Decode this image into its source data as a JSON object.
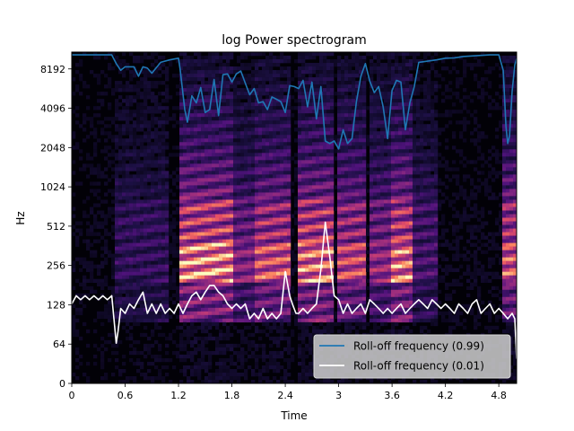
{
  "chart_data": {
    "type": "spectrogram",
    "title": "log Power spectrogram",
    "xlabel": "Time",
    "ylabel": "Hz",
    "xlim": [
      0,
      5.0
    ],
    "y_scale": "symlog (base 2)",
    "ylim": [
      0,
      11025
    ],
    "x_ticks": [
      {
        "value": 0,
        "label": "0"
      },
      {
        "value": 0.6,
        "label": "0.6"
      },
      {
        "value": 1.2,
        "label": "1.2"
      },
      {
        "value": 1.8,
        "label": "1.8"
      },
      {
        "value": 2.4,
        "label": "2.4"
      },
      {
        "value": 3.0,
        "label": "3"
      },
      {
        "value": 3.6,
        "label": "3.6"
      },
      {
        "value": 4.2,
        "label": "4.2"
      },
      {
        "value": 4.8,
        "label": "4.8"
      }
    ],
    "y_ticks": [
      {
        "value": 0,
        "label": "0"
      },
      {
        "value": 64,
        "label": "64"
      },
      {
        "value": 128,
        "label": "128"
      },
      {
        "value": 256,
        "label": "256"
      },
      {
        "value": 512,
        "label": "512"
      },
      {
        "value": 1024,
        "label": "1024"
      },
      {
        "value": 2048,
        "label": "2048"
      },
      {
        "value": 4096,
        "label": "4096"
      },
      {
        "value": 8192,
        "label": "8192"
      }
    ],
    "colormap": "magma",
    "legend_position": "lower-right",
    "series": [
      {
        "name": "Roll-off frequency (0.99)",
        "color": "#1f77b4",
        "x": [
          0,
          0.45,
          0.5,
          0.55,
          0.6,
          0.7,
          0.75,
          0.8,
          0.85,
          0.9,
          1.0,
          1.1,
          1.2,
          1.22,
          1.27,
          1.3,
          1.35,
          1.4,
          1.45,
          1.5,
          1.55,
          1.6,
          1.65,
          1.7,
          1.75,
          1.8,
          1.85,
          1.9,
          1.95,
          2.0,
          2.05,
          2.1,
          2.15,
          2.2,
          2.25,
          2.3,
          2.35,
          2.4,
          2.45,
          2.5,
          2.55,
          2.6,
          2.65,
          2.7,
          2.75,
          2.8,
          2.85,
          2.9,
          2.95,
          3.0,
          3.05,
          3.1,
          3.15,
          3.2,
          3.25,
          3.3,
          3.35,
          3.4,
          3.45,
          3.5,
          3.55,
          3.6,
          3.65,
          3.7,
          3.75,
          3.8,
          3.85,
          3.9,
          4.0,
          4.1,
          4.2,
          4.3,
          4.4,
          4.5,
          4.6,
          4.7,
          4.8,
          4.85,
          4.88,
          4.9,
          4.92,
          4.95,
          4.98,
          5.0
        ],
        "y": [
          10500,
          10500,
          9000,
          8000,
          8500,
          8500,
          7200,
          8500,
          8300,
          7600,
          9200,
          9600,
          9900,
          8000,
          4000,
          3200,
          5100,
          4500,
          5900,
          3800,
          4000,
          6800,
          3600,
          7400,
          7500,
          6500,
          7500,
          7900,
          6400,
          5200,
          5800,
          4500,
          4600,
          4000,
          5000,
          4800,
          4600,
          3800,
          6100,
          6000,
          5800,
          6700,
          4200,
          6500,
          3400,
          6000,
          2300,
          2200,
          2300,
          2000,
          2800,
          2200,
          2400,
          4600,
          7200,
          9000,
          6600,
          5400,
          6000,
          4200,
          2400,
          5600,
          6700,
          6500,
          2800,
          4500,
          6000,
          9200,
          9400,
          9600,
          9900,
          9950,
          10200,
          10300,
          10400,
          10500,
          10500,
          8000,
          3000,
          2200,
          2500,
          5500,
          8800,
          9800
        ]
      },
      {
        "name": "Roll-off frequency (0.01)",
        "color": "#ffffff",
        "x": [
          0,
          0.05,
          0.1,
          0.15,
          0.2,
          0.25,
          0.3,
          0.35,
          0.4,
          0.45,
          0.5,
          0.52,
          0.55,
          0.6,
          0.65,
          0.7,
          0.75,
          0.8,
          0.85,
          0.9,
          0.95,
          1.0,
          1.05,
          1.1,
          1.15,
          1.2,
          1.25,
          1.3,
          1.35,
          1.4,
          1.45,
          1.5,
          1.55,
          1.6,
          1.65,
          1.7,
          1.75,
          1.8,
          1.85,
          1.9,
          1.95,
          2.0,
          2.05,
          2.1,
          2.15,
          2.2,
          2.25,
          2.3,
          2.35,
          2.4,
          2.45,
          2.48,
          2.52,
          2.55,
          2.6,
          2.65,
          2.7,
          2.75,
          2.8,
          2.85,
          2.9,
          2.95,
          3.0,
          3.05,
          3.1,
          3.15,
          3.2,
          3.25,
          3.3,
          3.35,
          3.4,
          3.45,
          3.5,
          3.55,
          3.6,
          3.65,
          3.7,
          3.75,
          3.8,
          3.85,
          3.9,
          3.95,
          4.0,
          4.05,
          4.1,
          4.15,
          4.2,
          4.25,
          4.3,
          4.35,
          4.4,
          4.45,
          4.5,
          4.55,
          4.6,
          4.65,
          4.7,
          4.75,
          4.8,
          4.85,
          4.9,
          4.95,
          4.98,
          5.0
        ],
        "y": [
          130,
          150,
          140,
          150,
          140,
          150,
          140,
          150,
          140,
          150,
          65,
          80,
          120,
          110,
          130,
          120,
          140,
          160,
          110,
          130,
          110,
          130,
          110,
          120,
          110,
          130,
          110,
          130,
          150,
          160,
          140,
          160,
          180,
          180,
          160,
          150,
          130,
          120,
          130,
          120,
          130,
          100,
          110,
          100,
          120,
          100,
          110,
          100,
          110,
          230,
          150,
          130,
          110,
          110,
          120,
          110,
          120,
          130,
          240,
          550,
          300,
          150,
          140,
          110,
          130,
          110,
          120,
          130,
          110,
          140,
          130,
          120,
          110,
          120,
          110,
          120,
          130,
          110,
          120,
          130,
          140,
          130,
          120,
          140,
          130,
          120,
          130,
          120,
          110,
          130,
          120,
          110,
          130,
          140,
          110,
          120,
          130,
          110,
          120,
          110,
          100,
          110,
          100,
          40
        ]
      }
    ]
  }
}
